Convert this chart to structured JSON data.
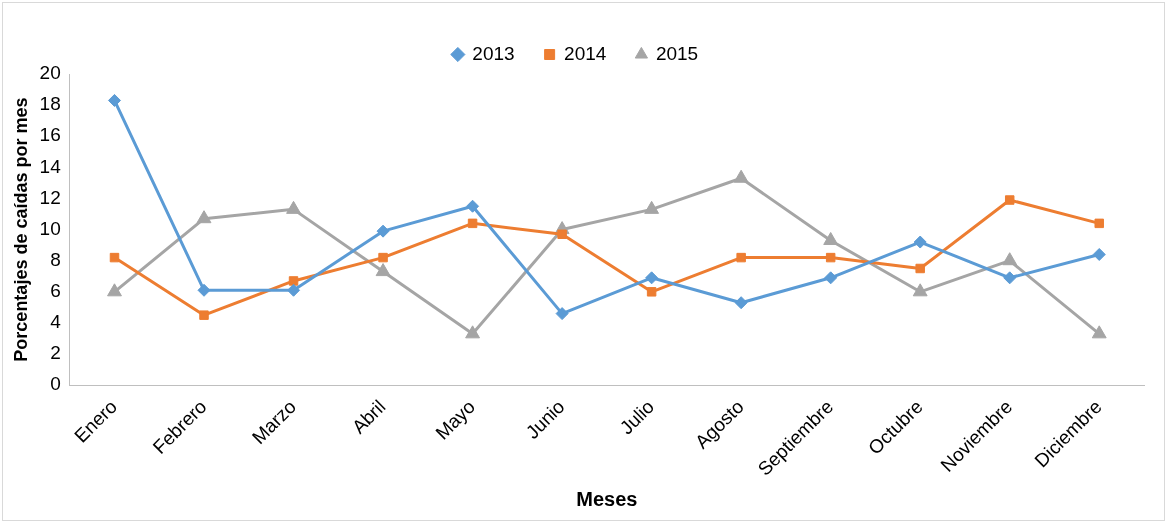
{
  "chart_data": {
    "type": "line",
    "xlabel": "Meses",
    "ylabel": "Porcentajes de caídas por mes",
    "categories": [
      "Enero",
      "Febrero",
      "Marzo",
      "Abril",
      "Mayo",
      "Junio",
      "Julio",
      "Agosto",
      "Septiembre",
      "Octubre",
      "Noviembre",
      "Diciembre"
    ],
    "series": [
      {
        "name": "2013",
        "color": "#5b9bd5",
        "marker": "diamond",
        "values": [
          18.3,
          6.1,
          6.1,
          9.9,
          11.5,
          4.6,
          6.9,
          5.3,
          6.9,
          9.2,
          6.9,
          8.4
        ]
      },
      {
        "name": "2014",
        "color": "#ed7d31",
        "marker": "square",
        "values": [
          8.2,
          4.5,
          6.7,
          8.2,
          10.4,
          9.7,
          6.0,
          8.2,
          8.2,
          7.5,
          11.9,
          10.4
        ]
      },
      {
        "name": "2015",
        "color": "#a5a5a5",
        "marker": "triangle",
        "values": [
          6.0,
          10.7,
          11.3,
          7.3,
          3.3,
          10.0,
          11.3,
          13.3,
          9.3,
          6.0,
          8.0,
          3.3
        ]
      }
    ],
    "ylim": [
      0,
      20
    ],
    "yticks": [
      0,
      2,
      4,
      6,
      8,
      10,
      12,
      14,
      16,
      18,
      20
    ],
    "grid": false,
    "legend": "top",
    "line_style": "solid"
  }
}
